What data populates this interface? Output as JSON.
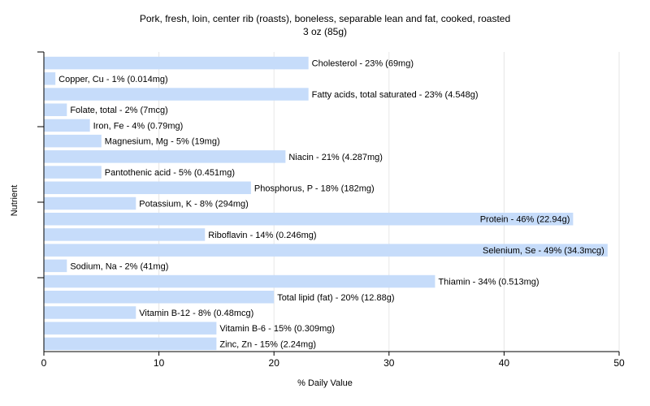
{
  "chart_data": {
    "type": "bar",
    "orientation": "horizontal",
    "title": "Pork, fresh, loin, center rib (roasts), boneless, separable lean and fat, cooked, roasted",
    "subtitle": "3 oz (85g)",
    "xlabel": "% Daily Value",
    "ylabel": "Nutrient",
    "xlim": [
      0,
      50
    ],
    "xticks": [
      0,
      10,
      20,
      30,
      40,
      50
    ],
    "grid": true,
    "bar_color": "#c6dcfa",
    "grid_color": "#e6e6e6",
    "categories": [
      "Cholesterol",
      "Copper, Cu",
      "Fatty acids, total saturated",
      "Folate, total",
      "Iron, Fe",
      "Magnesium, Mg",
      "Niacin",
      "Pantothenic acid",
      "Phosphorus, P",
      "Potassium, K",
      "Protein",
      "Riboflavin",
      "Selenium, Se",
      "Sodium, Na",
      "Thiamin",
      "Total lipid (fat)",
      "Vitamin B-12",
      "Vitamin B-6",
      "Zinc, Zn"
    ],
    "values": [
      23,
      1,
      23,
      2,
      4,
      5,
      21,
      5,
      18,
      8,
      46,
      14,
      49,
      2,
      34,
      20,
      8,
      15,
      15
    ],
    "labels": [
      "Cholesterol - 23% (69mg)",
      "Copper, Cu - 1% (0.014mg)",
      "Fatty acids, total saturated - 23% (4.548g)",
      "Folate, total - 2% (7mcg)",
      "Iron, Fe - 4% (0.79mg)",
      "Magnesium, Mg - 5% (19mg)",
      "Niacin - 21% (4.287mg)",
      "Pantothenic acid - 5% (0.451mg)",
      "Phosphorus, P - 18% (182mg)",
      "Potassium, K - 8% (294mg)",
      "Protein - 46% (22.94g)",
      "Riboflavin - 14% (0.246mg)",
      "Selenium, Se - 49% (34.3mcg)",
      "Sodium, Na - 2% (41mg)",
      "Thiamin - 34% (0.513mg)",
      "Total lipid (fat) - 20% (12.88g)",
      "Vitamin B-12 - 8% (0.48mcg)",
      "Vitamin B-6 - 15% (0.309mg)",
      "Zinc, Zn - 15% (2.24mg)"
    ]
  }
}
